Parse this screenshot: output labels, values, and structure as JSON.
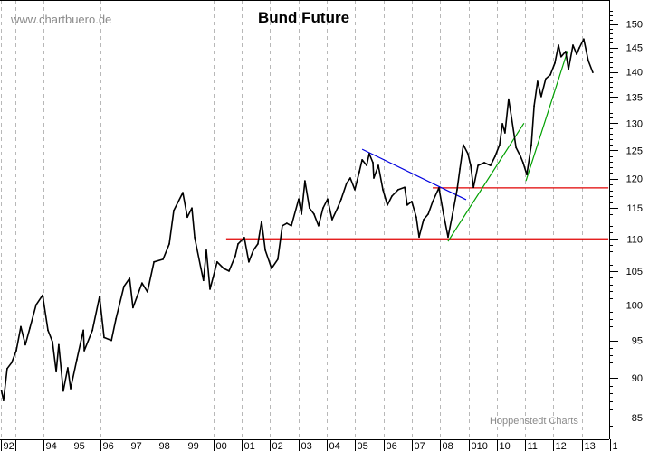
{
  "chart_data": {
    "type": "line",
    "title": "Bund Future",
    "watermark": "www.chartbuero.de",
    "credit": "Hoppenstedt Charts",
    "y_scale": "log",
    "ylim": [
      83,
      155
    ],
    "xlim": [
      1992.5,
      2014.0
    ],
    "y_ticks": [
      85,
      90,
      95,
      100,
      105,
      110,
      115,
      120,
      125,
      130,
      135,
      140,
      145,
      150
    ],
    "y_axis_position": "right",
    "x_ticks": [
      {
        "year": 1992.5,
        "label": "92"
      },
      {
        "year": 1993,
        "label": ""
      },
      {
        "year": 1994,
        "label": "94"
      },
      {
        "year": 1995,
        "label": "95"
      },
      {
        "year": 1996,
        "label": "96"
      },
      {
        "year": 1997,
        "label": "97"
      },
      {
        "year": 1998,
        "label": "98"
      },
      {
        "year": 1999,
        "label": "99"
      },
      {
        "year": 2000,
        "label": "00"
      },
      {
        "year": 2001,
        "label": "01"
      },
      {
        "year": 2002,
        "label": "02"
      },
      {
        "year": 2003,
        "label": "03"
      },
      {
        "year": 2004,
        "label": "04"
      },
      {
        "year": 2005,
        "label": "05"
      },
      {
        "year": 2006,
        "label": "06"
      },
      {
        "year": 2007,
        "label": "07"
      },
      {
        "year": 2008,
        "label": "08"
      },
      {
        "year": 2009,
        "label": "010"
      },
      {
        "year": 2010,
        "label": "10"
      },
      {
        "year": 2011,
        "label": "11"
      },
      {
        "year": 2012,
        "label": "12"
      },
      {
        "year": 2013,
        "label": "13"
      },
      {
        "year": 2014,
        "label": "1"
      }
    ],
    "grid": "vertical dashed",
    "series": [
      {
        "color": "#000000",
        "points": [
          [
            1992.52,
            88.3
          ],
          [
            1992.59,
            87.1
          ],
          [
            1992.72,
            91.2
          ],
          [
            1992.88,
            92.0
          ],
          [
            1993.04,
            93.6
          ],
          [
            1993.2,
            96.9
          ],
          [
            1993.36,
            94.4
          ],
          [
            1993.52,
            96.7
          ],
          [
            1993.74,
            100.0
          ],
          [
            1993.97,
            101.4
          ],
          [
            1994.16,
            96.4
          ],
          [
            1994.32,
            94.8
          ],
          [
            1994.45,
            90.8
          ],
          [
            1994.54,
            94.4
          ],
          [
            1994.7,
            88.3
          ],
          [
            1994.86,
            91.3
          ],
          [
            1994.96,
            88.6
          ],
          [
            1995.18,
            92.4
          ],
          [
            1995.41,
            96.4
          ],
          [
            1995.44,
            93.6
          ],
          [
            1995.73,
            96.4
          ],
          [
            1995.98,
            101.2
          ],
          [
            1996.14,
            95.4
          ],
          [
            1996.4,
            95.0
          ],
          [
            1996.56,
            98.0
          ],
          [
            1996.84,
            102.7
          ],
          [
            1997.04,
            103.9
          ],
          [
            1997.16,
            99.6
          ],
          [
            1997.48,
            103.2
          ],
          [
            1997.67,
            101.9
          ],
          [
            1997.9,
            106.4
          ],
          [
            1998.22,
            106.8
          ],
          [
            1998.44,
            109.2
          ],
          [
            1998.6,
            114.6
          ],
          [
            1998.92,
            117.6
          ],
          [
            1999.08,
            113.5
          ],
          [
            1999.24,
            115.0
          ],
          [
            1999.34,
            110.2
          ],
          [
            1999.56,
            105.4
          ],
          [
            1999.65,
            103.6
          ],
          [
            1999.75,
            108.2
          ],
          [
            1999.88,
            102.3
          ],
          [
            2000.13,
            106.4
          ],
          [
            2000.36,
            105.4
          ],
          [
            2000.55,
            105.0
          ],
          [
            2000.77,
            107.3
          ],
          [
            2000.87,
            109.2
          ],
          [
            2001.09,
            110.2
          ],
          [
            2001.25,
            106.4
          ],
          [
            2001.41,
            108.2
          ],
          [
            2001.57,
            109.2
          ],
          [
            2001.7,
            112.8
          ],
          [
            2001.83,
            108.2
          ],
          [
            2002.05,
            105.4
          ],
          [
            2002.27,
            106.8
          ],
          [
            2002.43,
            112.1
          ],
          [
            2002.59,
            112.5
          ],
          [
            2002.75,
            112.1
          ],
          [
            2003.01,
            116.5
          ],
          [
            2003.11,
            114.0
          ],
          [
            2003.23,
            119.6
          ],
          [
            2003.39,
            115.0
          ],
          [
            2003.55,
            114.0
          ],
          [
            2003.71,
            112.1
          ],
          [
            2003.87,
            115.0
          ],
          [
            2004.03,
            116.5
          ],
          [
            2004.19,
            113.1
          ],
          [
            2004.38,
            115.0
          ],
          [
            2004.51,
            116.5
          ],
          [
            2004.7,
            119.2
          ],
          [
            2004.83,
            120.1
          ],
          [
            2004.99,
            118.1
          ],
          [
            2005.15,
            121.2
          ],
          [
            2005.25,
            123.3
          ],
          [
            2005.41,
            122.3
          ],
          [
            2005.5,
            124.4
          ],
          [
            2005.63,
            122.8
          ],
          [
            2005.66,
            120.1
          ],
          [
            2005.82,
            122.3
          ],
          [
            2005.98,
            118.1
          ],
          [
            2006.14,
            115.5
          ],
          [
            2006.3,
            117.0
          ],
          [
            2006.52,
            118.1
          ],
          [
            2006.75,
            118.5
          ],
          [
            2006.84,
            115.5
          ],
          [
            2007.0,
            116.1
          ],
          [
            2007.16,
            113.5
          ],
          [
            2007.26,
            110.3
          ],
          [
            2007.42,
            113.1
          ],
          [
            2007.58,
            114.0
          ],
          [
            2007.74,
            116.1
          ],
          [
            2007.96,
            118.4
          ],
          [
            2008.12,
            114.0
          ],
          [
            2008.28,
            110.3
          ],
          [
            2008.44,
            114.0
          ],
          [
            2008.6,
            118.1
          ],
          [
            2008.7,
            121.7
          ],
          [
            2008.82,
            126.0
          ],
          [
            2008.98,
            124.4
          ],
          [
            2009.08,
            122.3
          ],
          [
            2009.18,
            118.5
          ],
          [
            2009.34,
            122.3
          ],
          [
            2009.56,
            122.8
          ],
          [
            2009.78,
            122.3
          ],
          [
            2009.94,
            123.9
          ],
          [
            2010.1,
            126.0
          ],
          [
            2010.2,
            129.9
          ],
          [
            2010.29,
            128.2
          ],
          [
            2010.42,
            134.6
          ],
          [
            2010.52,
            131.1
          ],
          [
            2010.68,
            125.5
          ],
          [
            2010.84,
            123.9
          ],
          [
            2010.93,
            122.8
          ],
          [
            2011.06,
            120.7
          ],
          [
            2011.22,
            126.0
          ],
          [
            2011.32,
            133.3
          ],
          [
            2011.44,
            138.1
          ],
          [
            2011.57,
            135.1
          ],
          [
            2011.73,
            138.6
          ],
          [
            2011.89,
            139.4
          ],
          [
            2012.05,
            141.8
          ],
          [
            2012.18,
            145.5
          ],
          [
            2012.27,
            143.1
          ],
          [
            2012.43,
            144.2
          ],
          [
            2012.53,
            140.5
          ],
          [
            2012.69,
            145.5
          ],
          [
            2012.82,
            143.6
          ],
          [
            2012.91,
            144.9
          ],
          [
            2013.07,
            146.8
          ],
          [
            2013.23,
            142.3
          ],
          [
            2013.39,
            139.9
          ]
        ]
      }
    ],
    "trendlines": [
      {
        "name": "support-110",
        "color": "#e00000",
        "from": [
          2000.45,
          110.0
        ],
        "to": [
          2013.94,
          110.0
        ]
      },
      {
        "name": "resistance-118",
        "color": "#e00000",
        "from": [
          2007.74,
          118.4
        ],
        "to": [
          2013.94,
          118.4
        ]
      },
      {
        "name": "downtrend",
        "color": "#0000e0",
        "from": [
          2005.25,
          125.2
        ],
        "to": [
          2008.92,
          116.4
        ]
      },
      {
        "name": "uptrend-1",
        "color": "#00a000",
        "from": [
          2008.28,
          109.6
        ],
        "to": [
          2010.96,
          130.0
        ]
      },
      {
        "name": "uptrend-2",
        "color": "#00a000",
        "from": [
          2011.03,
          119.6
        ],
        "to": [
          2012.5,
          144.3
        ]
      }
    ]
  }
}
